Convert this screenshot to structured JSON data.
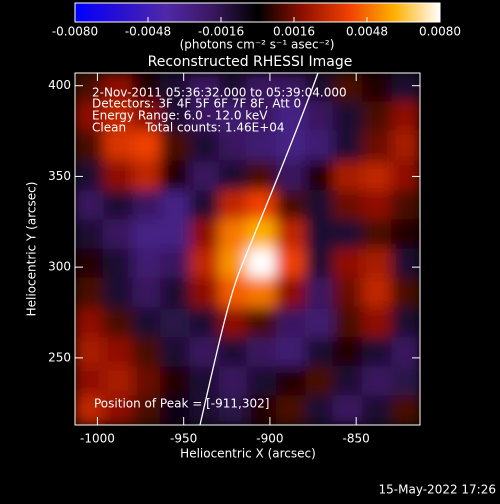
{
  "chart_data": {
    "type": "heatmap",
    "title": "Reconstructed RHESSI Image",
    "colorbar_label": "(photons cm⁻² s⁻¹ asec⁻²)",
    "xlabel": "Heliocentric X (arcsec)",
    "ylabel": "Heliocentric Y (arcsec)",
    "annotations": [
      "2-Nov-2011 05:36:32.000 to 05:39:04.000",
      "Detectors: 3F 4F 5F 6F 7F 8F, Att 0",
      "Energy Range: 6.0 - 12.0 keV",
      "Clean     Total counts: 1.46E+04"
    ],
    "peak_label": "Position of Peak = [-911,302]",
    "footer": "15-May-2022 17:26",
    "xlim": [
      -1013,
      -813
    ],
    "ylim": [
      213,
      407
    ],
    "xticks": [
      -1000,
      -950,
      -900,
      -850
    ],
    "yticks": [
      250,
      300,
      350,
      400
    ],
    "zlim": [
      -0.008,
      0.008
    ],
    "zticks": [
      {
        "value": -0.008,
        "label": "-0.0080"
      },
      {
        "value": -0.0048,
        "label": "-0.0048"
      },
      {
        "value": -0.0016,
        "label": "-0.0016"
      },
      {
        "value": 0.0016,
        "label": "0.0016"
      },
      {
        "value": 0.0048,
        "label": "0.0048"
      },
      {
        "value": 0.008,
        "label": "0.0080"
      }
    ],
    "colorscale": [
      "#0000ff",
      "#2a10d0",
      "#5028a8",
      "#3a1860",
      "#000000",
      "#901000",
      "#f04000",
      "#ffb000",
      "#ffffff"
    ],
    "x": [
      -1005,
      -988,
      -971,
      -955,
      -938,
      -921,
      -905,
      -888,
      -871,
      -855,
      -838,
      -821
    ],
    "y": [
      399,
      383,
      367,
      350,
      334,
      318,
      302,
      286,
      269,
      253,
      237,
      221
    ],
    "z": [
      [
        0.001,
        0.002,
        0.0005,
        -0.001,
        -0.002,
        -0.001,
        -0.002,
        -0.002,
        -0.001,
        0.001,
        0.0005,
        -0.001
      ],
      [
        0.002,
        0.003,
        0.002,
        -0.001,
        -0.002,
        -0.0025,
        -0.002,
        -0.003,
        -0.002,
        -0.001,
        0.001,
        0.002
      ],
      [
        0.001,
        0.0035,
        0.004,
        0.001,
        -0.001,
        -0.002,
        -0.0025,
        -0.003,
        -0.0025,
        -0.001,
        0.0015,
        0.0025
      ],
      [
        -0.001,
        0.002,
        0.003,
        0.0005,
        -0.002,
        -0.001,
        0.001,
        -0.002,
        0.0005,
        0.0025,
        0.003,
        0.002
      ],
      [
        -0.002,
        -0.001,
        -0.002,
        -0.003,
        -0.001,
        0.003,
        0.004,
        0.001,
        -0.001,
        0.0015,
        0.002,
        0.001
      ],
      [
        -0.001,
        -0.002,
        -0.003,
        -0.003,
        0.002,
        0.005,
        0.006,
        0.003,
        -0.001,
        -0.001,
        0.001,
        0.0005
      ],
      [
        0.0005,
        -0.001,
        -0.0025,
        -0.002,
        0.003,
        0.0055,
        0.008,
        0.004,
        -0.001,
        0.002,
        0.0025,
        -0.001
      ],
      [
        0.001,
        -0.001,
        -0.002,
        -0.001,
        0.002,
        0.0045,
        0.005,
        0.002,
        -0.002,
        0.0015,
        0.003,
        0.001
      ],
      [
        0.002,
        0.001,
        -0.001,
        -0.0015,
        -0.001,
        0.002,
        0.001,
        -0.002,
        -0.0025,
        0.001,
        0.002,
        -0.001
      ],
      [
        0.0025,
        0.002,
        0.001,
        -0.001,
        -0.002,
        -0.001,
        -0.002,
        -0.0025,
        -0.001,
        0.0005,
        -0.001,
        -0.002
      ],
      [
        0.002,
        0.0025,
        0.0015,
        0.0005,
        -0.001,
        -0.002,
        -0.001,
        0.0005,
        0.001,
        -0.001,
        -0.002,
        -0.0015
      ],
      [
        0.003,
        0.002,
        0.001,
        -0.0005,
        -0.001,
        -0.0015,
        0.0005,
        0.001,
        -0.001,
        -0.002,
        -0.001,
        0.001
      ]
    ]
  }
}
